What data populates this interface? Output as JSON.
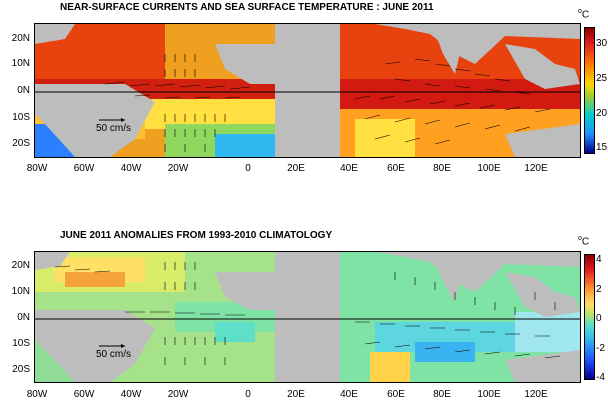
{
  "top_panel": {
    "title": "NEAR-SURFACE CURRENTS AND SEA SURFACE TEMPERATURE : JUNE 2011",
    "scale_label": "50 cm/s",
    "unit": "C",
    "unit_prefix": "o",
    "colorbar_ticks": [
      "30",
      "25",
      "20",
      "15"
    ]
  },
  "bottom_panel": {
    "title": "JUNE 2011 ANOMALIES FROM 1993-2010 CLIMATOLOGY",
    "scale_label": "50 cm/s",
    "unit": "C",
    "unit_prefix": "o",
    "colorbar_ticks": [
      "4",
      "2",
      "0",
      "-2",
      "-4"
    ]
  },
  "axes": {
    "lat_labels": [
      "20N",
      "10N",
      "0N",
      "10S",
      "20S"
    ],
    "lon_labels": [
      "80W",
      "60W",
      "40W",
      "20W",
      "0",
      "20E",
      "40E",
      "60E",
      "80E",
      "100E",
      "120E"
    ]
  },
  "colors": {
    "land": "#bdbdbd",
    "sst_warm": "#e8320e",
    "sst_cool": "#1e90ff",
    "anomaly_neutral": "#7fe3a5"
  }
}
